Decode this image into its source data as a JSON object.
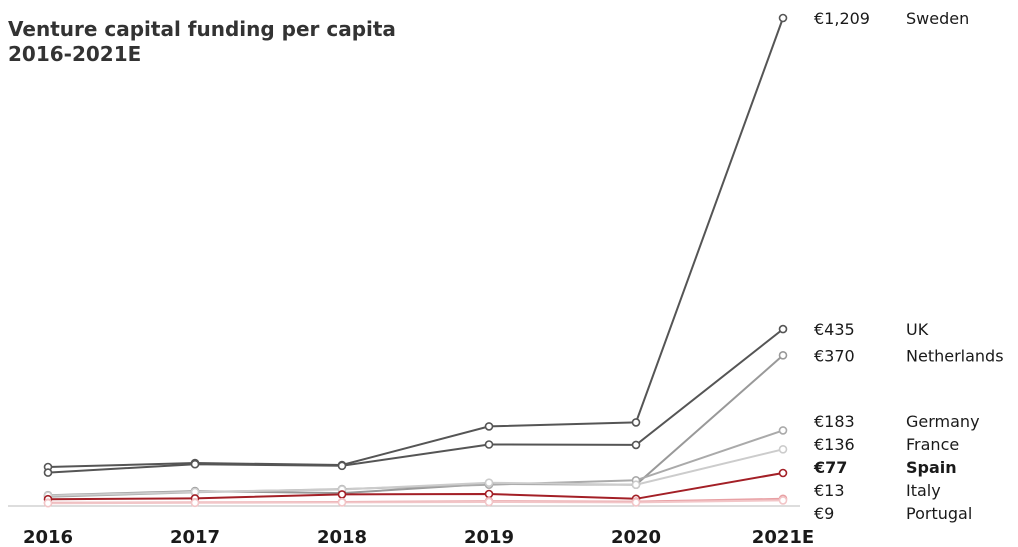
{
  "chart_data": {
    "type": "line",
    "title": "Venture capital funding per capita",
    "subtitle": "2016-2021E",
    "x": [
      "2016",
      "2017",
      "2018",
      "2019",
      "2020",
      "2021E"
    ],
    "series": [
      {
        "name": "Sweden",
        "values": [
          92,
          102,
          97,
          193,
          203,
          1209
        ],
        "end_label": "€1,209",
        "color": "#555555",
        "highlight": false
      },
      {
        "name": "UK",
        "values": [
          78,
          99,
          95,
          148,
          147,
          435
        ],
        "end_label": "€435",
        "color": "#555555",
        "highlight": false
      },
      {
        "name": "Netherlands",
        "values": [
          22,
          32,
          27,
          50,
          48,
          370
        ],
        "end_label": "€370",
        "color": "#999999",
        "highlight": false
      },
      {
        "name": "Germany",
        "values": [
          18,
          29,
          37,
          48,
          59,
          183
        ],
        "end_label": "€183",
        "color": "#aaaaaa",
        "highlight": false
      },
      {
        "name": "France",
        "values": [
          21,
          30,
          36,
          53,
          48,
          136
        ],
        "end_label": "€136",
        "color": "#cccccc",
        "highlight": false
      },
      {
        "name": "Spain",
        "values": [
          12,
          14,
          24,
          25,
          13,
          77
        ],
        "end_label": "€77",
        "color": "#a31f26",
        "highlight": true
      },
      {
        "name": "Italy",
        "values": [
          3,
          4,
          5,
          7,
          6,
          13
        ],
        "end_label": "€13",
        "color": "#e8a0a4",
        "highlight": false
      },
      {
        "name": "Portugal",
        "values": [
          2,
          3,
          4,
          5,
          4,
          9
        ],
        "end_label": "€9",
        "color": "#f2c6c8",
        "highlight": false
      }
    ],
    "ylim": [
      0,
      1209
    ],
    "grid": false,
    "legend": "right (labels at line ends)"
  }
}
